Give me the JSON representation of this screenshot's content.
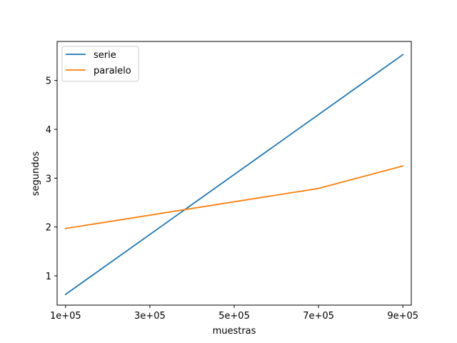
{
  "chart_data": {
    "type": "line",
    "xlabel": "muestras",
    "ylabel": "segundos",
    "xlim": [
      80000,
      920000
    ],
    "ylim": [
      0.4,
      5.8
    ],
    "x_ticks": [
      100000,
      300000,
      500000,
      700000,
      900000
    ],
    "x_tick_labels": [
      "1e+05",
      "3e+05",
      "5e+05",
      "7e+05",
      "9e+05"
    ],
    "y_ticks": [
      1,
      2,
      3,
      4,
      5
    ],
    "y_tick_labels": [
      "1",
      "2",
      "3",
      "4",
      "5"
    ],
    "grid": false,
    "legend_position": "top-left",
    "series": [
      {
        "name": "serie",
        "color": "#1f77b4",
        "x": [
          100000,
          900000
        ],
        "y": [
          0.62,
          5.53
        ]
      },
      {
        "name": "paralelo",
        "color": "#ff7f0e",
        "x": [
          100000,
          700000,
          900000
        ],
        "y": [
          1.97,
          2.79,
          3.25
        ]
      }
    ]
  }
}
